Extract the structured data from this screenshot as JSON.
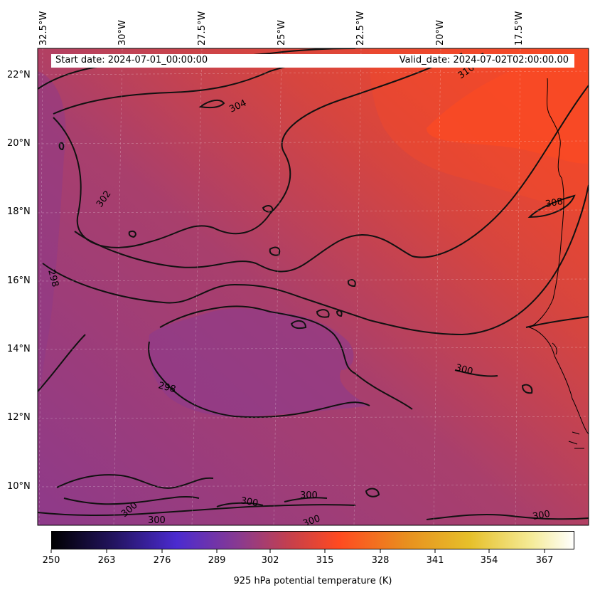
{
  "map": {
    "info": {
      "start_label": "Start date: 2024-07-01_00:00:00",
      "valid_label": "Valid_date: 2024-07-02T02:00:00.00"
    },
    "lat_labels": [
      "22°N",
      "20°N",
      "18°N",
      "16°N",
      "14°N",
      "12°N",
      "10°N"
    ],
    "lon_labels": [
      "32.5°W",
      "30°W",
      "27.5°W",
      "25°W",
      "22.5°W",
      "20°W",
      "17.5°W"
    ],
    "contour_labels": [
      "304",
      "302",
      "298",
      "298",
      "300",
      "300",
      "300",
      "300",
      "300",
      "300",
      "308",
      "310",
      "300"
    ],
    "colors": {
      "cool": "#8a3a8f",
      "mid": "#b6405e",
      "warm": "#e24a35",
      "hot": "#ff4a20",
      "contour": "#111111"
    }
  },
  "colorbar": {
    "ticks": [
      "250",
      "263",
      "276",
      "289",
      "302",
      "315",
      "328",
      "341",
      "354",
      "367"
    ],
    "title": "925 hPa potential temperature (K)",
    "colors": [
      "#000000",
      "#2a1766",
      "#4b2bd0",
      "#8a3a8f",
      "#c8404a",
      "#ff4a20",
      "#e8941f",
      "#e8c22a",
      "#f7f0a0",
      "#ffffff"
    ]
  }
}
